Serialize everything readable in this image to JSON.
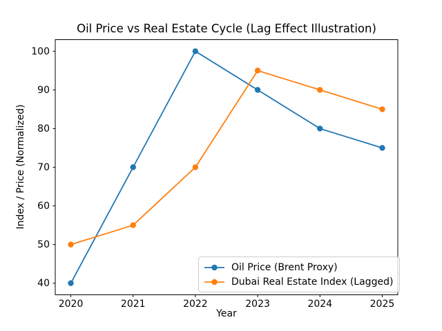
{
  "chart_data": {
    "type": "line",
    "title": "Oil Price vs Real Estate Cycle (Lag Effect Illustration)",
    "xlabel": "Year",
    "ylabel": "Index / Price (Normalized)",
    "x": [
      2020,
      2021,
      2022,
      2023,
      2024,
      2025
    ],
    "series": [
      {
        "name": "Oil Price (Brent Proxy)",
        "color": "#1f77b4",
        "marker": "circle",
        "values": [
          40,
          70,
          100,
          90,
          80,
          75
        ]
      },
      {
        "name": "Dubai Real Estate Index (Lagged)",
        "color": "#ff7f0e",
        "marker": "circle",
        "values": [
          50,
          55,
          70,
          95,
          90,
          85
        ]
      }
    ],
    "xticks": [
      2020,
      2021,
      2022,
      2023,
      2024,
      2025
    ],
    "yticks": [
      40,
      50,
      60,
      70,
      80,
      90,
      100
    ],
    "xlim": [
      2019.75,
      2025.25
    ],
    "ylim": [
      37,
      103
    ],
    "grid": false,
    "legend_position": "lower right",
    "frame": "full-box",
    "background": "#ffffff",
    "text_color": "#000000"
  }
}
